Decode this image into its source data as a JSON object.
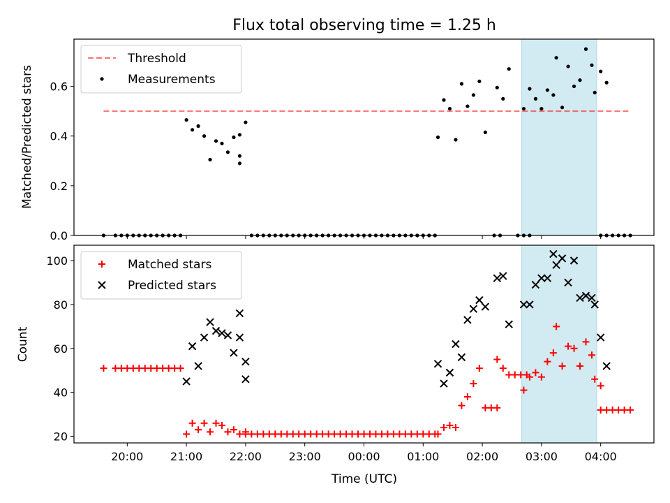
{
  "chart_data": [
    {
      "type": "scatter",
      "title": "Flux total observing time = 1.25 h",
      "xlabel": "",
      "ylabel": "Matched/Predicted stars",
      "ylim": [
        0,
        0.79
      ],
      "yticks": [
        0.0,
        0.2,
        0.4,
        0.6
      ],
      "ytick_labels": [
        "0.0",
        "0.2",
        "0.4",
        "0.6"
      ],
      "grid": false,
      "legend_position": "top-left",
      "highlight_span": {
        "start": "02:40",
        "end": "03:56",
        "color": "#add8e6"
      },
      "threshold": {
        "name": "Threshold",
        "value": 0.5,
        "x_start": "19:36",
        "x_end": "04:30",
        "color": "#ff0000",
        "style": "dashed"
      },
      "series": [
        {
          "name": "Measurements",
          "color": "#000000",
          "marker": "dot",
          "points": [
            [
              "19:36",
              0
            ],
            [
              "19:48",
              0
            ],
            [
              "19:54",
              0
            ],
            [
              "20:00",
              0
            ],
            [
              "20:06",
              0
            ],
            [
              "20:12",
              0
            ],
            [
              "20:18",
              0
            ],
            [
              "20:24",
              0
            ],
            [
              "20:30",
              0
            ],
            [
              "20:36",
              0
            ],
            [
              "20:42",
              0
            ],
            [
              "20:48",
              0
            ],
            [
              "20:54",
              0
            ],
            [
              "21:00",
              0.465
            ],
            [
              "21:06",
              0.425
            ],
            [
              "21:12",
              0.44
            ],
            [
              "21:18",
              0.4
            ],
            [
              "21:24",
              0.305
            ],
            [
              "21:30",
              0.38
            ],
            [
              "21:36",
              0.37
            ],
            [
              "21:42",
              0.335
            ],
            [
              "21:48",
              0.395
            ],
            [
              "21:54",
              0.32
            ],
            [
              "21:54",
              0.29
            ],
            [
              "21:54",
              0.405
            ],
            [
              "22:00",
              0.455
            ],
            [
              "22:06",
              0
            ],
            [
              "22:12",
              0
            ],
            [
              "22:18",
              0
            ],
            [
              "22:24",
              0
            ],
            [
              "22:30",
              0
            ],
            [
              "22:36",
              0
            ],
            [
              "22:42",
              0
            ],
            [
              "22:48",
              0
            ],
            [
              "22:54",
              0
            ],
            [
              "23:00",
              0
            ],
            [
              "23:06",
              0
            ],
            [
              "23:12",
              0
            ],
            [
              "23:18",
              0
            ],
            [
              "23:24",
              0
            ],
            [
              "23:30",
              0
            ],
            [
              "23:36",
              0
            ],
            [
              "23:42",
              0
            ],
            [
              "23:48",
              0
            ],
            [
              "23:54",
              0
            ],
            [
              "00:00",
              0
            ],
            [
              "00:06",
              0
            ],
            [
              "00:12",
              0
            ],
            [
              "00:18",
              0
            ],
            [
              "00:24",
              0
            ],
            [
              "00:30",
              0
            ],
            [
              "00:36",
              0
            ],
            [
              "00:42",
              0
            ],
            [
              "00:48",
              0
            ],
            [
              "00:54",
              0
            ],
            [
              "01:00",
              0
            ],
            [
              "01:06",
              0
            ],
            [
              "01:12",
              0
            ],
            [
              "01:15",
              0.395
            ],
            [
              "01:21",
              0.545
            ],
            [
              "01:27",
              0.51
            ],
            [
              "01:33",
              0.385
            ],
            [
              "01:39",
              0.61
            ],
            [
              "01:45",
              0.52
            ],
            [
              "01:51",
              0.565
            ],
            [
              "01:57",
              0.62
            ],
            [
              "02:03",
              0.415
            ],
            [
              "02:12",
              0
            ],
            [
              "02:18",
              0
            ],
            [
              "02:15",
              0.595
            ],
            [
              "02:21",
              0.55
            ],
            [
              "02:27",
              0.67
            ],
            [
              "02:36",
              0
            ],
            [
              "02:42",
              0
            ],
            [
              "02:48",
              0
            ],
            [
              "02:42",
              0.51
            ],
            [
              "02:48",
              0.59
            ],
            [
              "02:54",
              0.55
            ],
            [
              "03:00",
              0.51
            ],
            [
              "03:06",
              0.585
            ],
            [
              "03:12",
              0.565
            ],
            [
              "03:15",
              0.715
            ],
            [
              "03:21",
              0.515
            ],
            [
              "03:27",
              0.68
            ],
            [
              "03:33",
              0.6
            ],
            [
              "03:39",
              0.625
            ],
            [
              "03:45",
              0.75
            ],
            [
              "03:51",
              0.685
            ],
            [
              "03:54",
              0.575
            ],
            [
              "04:00",
              0.66
            ],
            [
              "04:06",
              0.615
            ],
            [
              "04:00",
              0
            ],
            [
              "04:06",
              0
            ],
            [
              "04:12",
              0
            ],
            [
              "04:18",
              0
            ],
            [
              "04:24",
              0
            ],
            [
              "04:30",
              0
            ]
          ]
        }
      ]
    },
    {
      "type": "scatter",
      "title": "",
      "xlabel": "Time (UTC)",
      "ylabel": "Count",
      "ylim": [
        17,
        107
      ],
      "yticks": [
        20,
        40,
        60,
        80,
        100
      ],
      "ytick_labels": [
        "20",
        "40",
        "60",
        "80",
        "100"
      ],
      "xticks": [
        "20:00",
        "21:00",
        "22:00",
        "23:00",
        "00:00",
        "01:00",
        "02:00",
        "03:00",
        "04:00"
      ],
      "grid": false,
      "legend_position": "top-left",
      "highlight_span": {
        "start": "02:40",
        "end": "03:56",
        "color": "#add8e6"
      },
      "series": [
        {
          "name": "Matched stars",
          "color": "#ff0000",
          "marker": "plus",
          "points": [
            [
              "19:36",
              51
            ],
            [
              "19:48",
              51
            ],
            [
              "19:54",
              51
            ],
            [
              "20:00",
              51
            ],
            [
              "20:06",
              51
            ],
            [
              "20:12",
              51
            ],
            [
              "20:18",
              51
            ],
            [
              "20:24",
              51
            ],
            [
              "20:30",
              51
            ],
            [
              "20:36",
              51
            ],
            [
              "20:42",
              51
            ],
            [
              "20:48",
              51
            ],
            [
              "20:54",
              51
            ],
            [
              "21:00",
              21
            ],
            [
              "21:06",
              26
            ],
            [
              "21:12",
              23
            ],
            [
              "21:18",
              26
            ],
            [
              "21:24",
              22
            ],
            [
              "21:30",
              26
            ],
            [
              "21:36",
              25
            ],
            [
              "21:42",
              22
            ],
            [
              "21:48",
              23
            ],
            [
              "21:54",
              21
            ],
            [
              "22:00",
              22
            ],
            [
              "22:00",
              21
            ],
            [
              "22:06",
              21
            ],
            [
              "22:12",
              21
            ],
            [
              "22:18",
              21
            ],
            [
              "22:24",
              21
            ],
            [
              "22:30",
              21
            ],
            [
              "22:36",
              21
            ],
            [
              "22:42",
              21
            ],
            [
              "22:48",
              21
            ],
            [
              "22:54",
              21
            ],
            [
              "23:00",
              21
            ],
            [
              "23:06",
              21
            ],
            [
              "23:12",
              21
            ],
            [
              "23:18",
              21
            ],
            [
              "23:24",
              21
            ],
            [
              "23:30",
              21
            ],
            [
              "23:36",
              21
            ],
            [
              "23:42",
              21
            ],
            [
              "23:48",
              21
            ],
            [
              "23:54",
              21
            ],
            [
              "00:00",
              21
            ],
            [
              "00:06",
              21
            ],
            [
              "00:12",
              21
            ],
            [
              "00:18",
              21
            ],
            [
              "00:24",
              21
            ],
            [
              "00:30",
              21
            ],
            [
              "00:36",
              21
            ],
            [
              "00:42",
              21
            ],
            [
              "00:48",
              21
            ],
            [
              "00:54",
              21
            ],
            [
              "01:00",
              21
            ],
            [
              "01:06",
              21
            ],
            [
              "01:12",
              21
            ],
            [
              "01:15",
              21
            ],
            [
              "01:21",
              24
            ],
            [
              "01:27",
              25
            ],
            [
              "01:33",
              24
            ],
            [
              "01:39",
              34
            ],
            [
              "01:45",
              38
            ],
            [
              "01:51",
              44
            ],
            [
              "01:57",
              51
            ],
            [
              "02:03",
              33
            ],
            [
              "02:09",
              33
            ],
            [
              "02:15",
              33
            ],
            [
              "02:15",
              55
            ],
            [
              "02:21",
              51
            ],
            [
              "02:27",
              48
            ],
            [
              "02:33",
              48
            ],
            [
              "02:39",
              48
            ],
            [
              "02:45",
              48
            ],
            [
              "02:42",
              41
            ],
            [
              "02:48",
              47
            ],
            [
              "02:54",
              49
            ],
            [
              "03:00",
              47
            ],
            [
              "03:06",
              54
            ],
            [
              "03:12",
              58
            ],
            [
              "03:15",
              70
            ],
            [
              "03:21",
              52
            ],
            [
              "03:27",
              61
            ],
            [
              "03:33",
              60
            ],
            [
              "03:39",
              52
            ],
            [
              "03:45",
              63
            ],
            [
              "03:51",
              57
            ],
            [
              "03:54",
              46
            ],
            [
              "04:00",
              43
            ],
            [
              "04:00",
              32
            ],
            [
              "04:06",
              32
            ],
            [
              "04:12",
              32
            ],
            [
              "04:18",
              32
            ],
            [
              "04:24",
              32
            ],
            [
              "04:30",
              32
            ]
          ]
        },
        {
          "name": "Predicted stars",
          "color": "#000000",
          "marker": "x",
          "points": [
            [
              "21:00",
              45
            ],
            [
              "21:06",
              61
            ],
            [
              "21:12",
              52
            ],
            [
              "21:18",
              65
            ],
            [
              "21:24",
              72
            ],
            [
              "21:30",
              68
            ],
            [
              "21:36",
              67
            ],
            [
              "21:42",
              66
            ],
            [
              "21:48",
              58
            ],
            [
              "21:54",
              65
            ],
            [
              "21:54",
              76
            ],
            [
              "22:00",
              54
            ],
            [
              "22:00",
              46
            ],
            [
              "01:15",
              53
            ],
            [
              "01:21",
              44
            ],
            [
              "01:27",
              49
            ],
            [
              "01:33",
              62
            ],
            [
              "01:39",
              56
            ],
            [
              "01:45",
              73
            ],
            [
              "01:51",
              78
            ],
            [
              "01:57",
              82
            ],
            [
              "02:03",
              79
            ],
            [
              "02:15",
              92
            ],
            [
              "02:21",
              93
            ],
            [
              "02:27",
              71
            ],
            [
              "02:42",
              80
            ],
            [
              "02:48",
              80
            ],
            [
              "02:54",
              89
            ],
            [
              "03:00",
              92
            ],
            [
              "03:06",
              92
            ],
            [
              "03:12",
              103
            ],
            [
              "03:15",
              98
            ],
            [
              "03:21",
              101
            ],
            [
              "03:27",
              90
            ],
            [
              "03:33",
              100
            ],
            [
              "03:39",
              83
            ],
            [
              "03:45",
              84
            ],
            [
              "03:51",
              83
            ],
            [
              "03:54",
              80
            ],
            [
              "04:00",
              65
            ],
            [
              "04:06",
              52
            ]
          ]
        }
      ]
    }
  ]
}
